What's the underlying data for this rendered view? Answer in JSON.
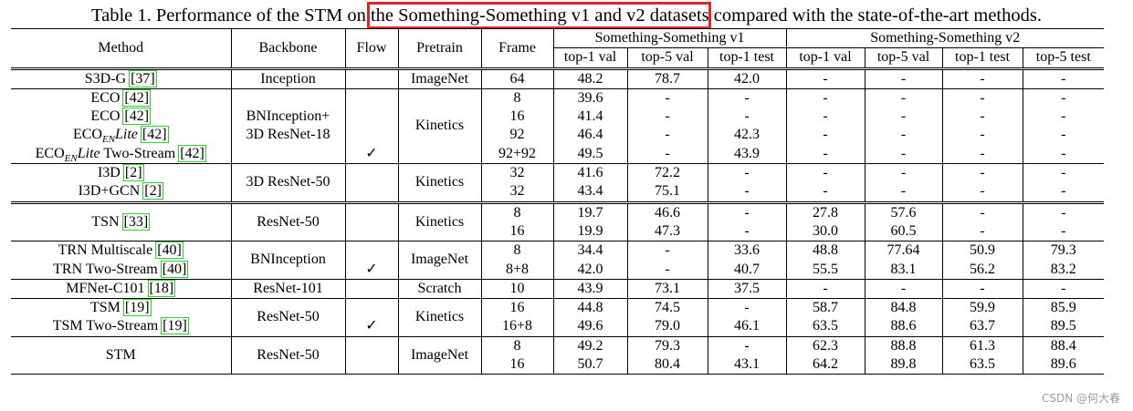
{
  "caption": {
    "prefix": "Table 1. Performance of the STM on the ",
    "highlighted": "Something-Something v1 and v2 datasets",
    "suffix": " compared with the state-of-the-art methods."
  },
  "header": {
    "method": "Method",
    "backbone": "Backbone",
    "flow": "Flow",
    "pretrain": "Pretrain",
    "frame": "Frame",
    "v1_group": "Something-Something v1",
    "v2_group": "Something-Something v2",
    "v1_cols": [
      "top-1 val",
      "top-5 val",
      "top-1 test"
    ],
    "v2_cols": [
      "top-1 val",
      "top-5 val",
      "top-1 test",
      "top-5 test"
    ]
  },
  "rows": {
    "s3dg": {
      "method": "S3D-G",
      "cite": "[37]",
      "backbone": "Inception",
      "pretrain": "ImageNet",
      "frame": "64",
      "v1": [
        "48.2",
        "78.7",
        "42.0"
      ],
      "v2": [
        "-",
        "-",
        "-",
        "-"
      ]
    },
    "eco_backbone": [
      "BNInception+",
      "3D ResNet-18"
    ],
    "eco_pretrain": "Kinetics",
    "eco": [
      {
        "method": "ECO",
        "cite": "[42]",
        "frame": "8",
        "v1": [
          "39.6",
          "-",
          "-"
        ],
        "v2": [
          "-",
          "-",
          "-",
          "-"
        ]
      },
      {
        "method": "ECO",
        "cite": "[42]",
        "frame": "16",
        "v1": [
          "41.4",
          "-",
          "-"
        ],
        "v2": [
          "-",
          "-",
          "-",
          "-"
        ]
      },
      {
        "method": "ECO",
        "sub": "EN",
        "lite": "Lite",
        "cite": "[42]",
        "frame": "92",
        "v1": [
          "46.4",
          "-",
          "42.3"
        ],
        "v2": [
          "-",
          "-",
          "-",
          "-"
        ]
      },
      {
        "method": "ECO",
        "sub": "EN",
        "lite": "Lite",
        "after": "Two-Stream",
        "cite": "[42]",
        "flow": "✓",
        "frame": "92+92",
        "v1": [
          "49.5",
          "-",
          "43.9"
        ],
        "v2": [
          "-",
          "-",
          "-",
          "-"
        ]
      }
    ],
    "i3d_backbone": "3D ResNet-50",
    "i3d_pretrain": "Kinetics",
    "i3d": [
      {
        "method": "I3D",
        "cite": "[2]",
        "frame": "32",
        "v1": [
          "41.6",
          "72.2",
          "-"
        ],
        "v2": [
          "-",
          "-",
          "-",
          "-"
        ]
      },
      {
        "method": "I3D+GCN",
        "cite": "[2]",
        "frame": "32",
        "v1": [
          "43.4",
          "75.1",
          "-"
        ],
        "v2": [
          "-",
          "-",
          "-",
          "-"
        ]
      }
    ],
    "tsn": {
      "method": "TSN",
      "cite": "[33]",
      "backbone": "ResNet-50",
      "pretrain": "Kinetics",
      "sub": [
        {
          "frame": "8",
          "v1": [
            "19.7",
            "46.6",
            "-"
          ],
          "v2": [
            "27.8",
            "57.6",
            "-",
            "-"
          ]
        },
        {
          "frame": "16",
          "v1": [
            "19.9",
            "47.3",
            "-"
          ],
          "v2": [
            "30.0",
            "60.5",
            "-",
            "-"
          ]
        }
      ]
    },
    "trn_backbone": "BNInception",
    "trn_pretrain": "ImageNet",
    "trn": [
      {
        "method": "TRN Multiscale",
        "cite": "[40]",
        "frame": "8",
        "v1": [
          "34.4",
          "-",
          "33.6"
        ],
        "v2": [
          "48.8",
          "77.64",
          "50.9",
          "79.3"
        ]
      },
      {
        "method": "TRN Two-Stream",
        "cite": "[40]",
        "flow": "✓",
        "frame": "8+8",
        "v1": [
          "42.0",
          "-",
          "40.7"
        ],
        "v2": [
          "55.5",
          "83.1",
          "56.2",
          "83.2"
        ]
      }
    ],
    "mfnet": {
      "method": "MFNet-C101",
      "cite": "[18]",
      "backbone": "ResNet-101",
      "pretrain": "Scratch",
      "frame": "10",
      "v1": [
        "43.9",
        "73.1",
        "37.5"
      ],
      "v2": [
        "-",
        "-",
        "-",
        "-"
      ]
    },
    "tsm_backbone": "ResNet-50",
    "tsm_pretrain": "Kinetics",
    "tsm": [
      {
        "method": "TSM",
        "cite": "[19]",
        "frame": "16",
        "v1": [
          "44.8",
          "74.5",
          "-"
        ],
        "v2": [
          "58.7",
          "84.8",
          "59.9",
          "85.9"
        ]
      },
      {
        "method": "TSM Two-Stream",
        "cite": "[19]",
        "flow": "✓",
        "frame": "16+8",
        "v1": [
          "49.6",
          "79.0",
          "46.1"
        ],
        "v2": [
          "63.5",
          "88.6",
          "63.7",
          "89.5"
        ]
      }
    ],
    "stm": {
      "method": "STM",
      "backbone": "ResNet-50",
      "pretrain": "ImageNet",
      "sub": [
        {
          "frame": "8",
          "v1": [
            "49.2",
            "79.3",
            "-"
          ],
          "v2": [
            "62.3",
            "88.8",
            "61.3",
            "88.4"
          ]
        },
        {
          "frame": "16",
          "v1": [
            "50.7",
            "80.4",
            "43.1"
          ],
          "v2": [
            "64.2",
            "89.8",
            "63.5",
            "89.6"
          ]
        }
      ]
    }
  },
  "watermark": "CSDN @何大春",
  "highlight_color": "#e0262b",
  "cite_box_color": "#2bd42b"
}
